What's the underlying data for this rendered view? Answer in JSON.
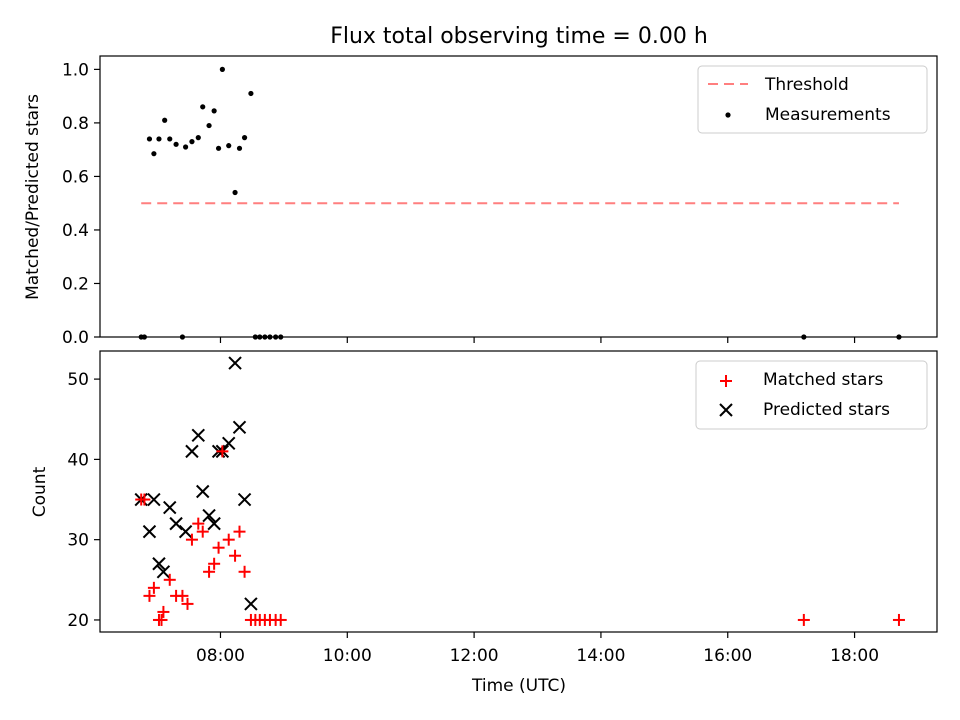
{
  "title": "Flux total observing time = 0.00 h",
  "chart_data": [
    {
      "type": "scatter",
      "xlabel": "",
      "ylabel": "Matched/Predicted stars",
      "xlim": [
        6.1,
        19.3
      ],
      "ylim": [
        0,
        1.05
      ],
      "yticks": [
        0.0,
        0.2,
        0.4,
        0.6,
        0.8,
        1.0
      ],
      "yticklabels": [
        "0.0",
        "0.2",
        "0.4",
        "0.6",
        "0.8",
        "1.0"
      ],
      "legend_position": "top-right",
      "threshold": {
        "name": "Threshold",
        "y": 0.5,
        "x": [
          6.75,
          18.7
        ],
        "color": "#ff7f7f"
      },
      "series": [
        {
          "name": "Measurements",
          "color": "#000000",
          "x": [
            6.75,
            6.8,
            6.88,
            6.95,
            7.03,
            7.12,
            7.2,
            7.3,
            7.45,
            7.55,
            7.65,
            7.72,
            7.82,
            7.9,
            7.97,
            8.03,
            8.13,
            8.23,
            8.3,
            8.38,
            8.48,
            8.55,
            8.62,
            8.7,
            8.78,
            8.87,
            8.95,
            7.4,
            17.2,
            18.7
          ],
          "y": [
            0,
            0,
            0.74,
            0.685,
            0.74,
            0.81,
            0.74,
            0.72,
            0.71,
            0.73,
            0.745,
            0.86,
            0.79,
            0.845,
            0.705,
            1.0,
            0.715,
            0.54,
            0.705,
            0.745,
            0.91,
            0,
            0,
            0,
            0,
            0,
            0,
            0,
            0,
            0
          ]
        }
      ]
    },
    {
      "type": "scatter",
      "xlabel": "Time (UTC)",
      "ylabel": "Count",
      "xlim": [
        6.1,
        19.3
      ],
      "ylim": [
        18.5,
        53.5
      ],
      "xticks": [
        8,
        10,
        12,
        14,
        16,
        18
      ],
      "xticklabels": [
        "08:00",
        "10:00",
        "12:00",
        "14:00",
        "16:00",
        "18:00"
      ],
      "yticks": [
        20,
        30,
        40,
        50
      ],
      "yticklabels": [
        "20",
        "30",
        "40",
        "50"
      ],
      "legend_position": "top-right",
      "series": [
        {
          "name": "Matched stars",
          "marker": "plus",
          "color": "#ff0000",
          "x": [
            6.75,
            6.8,
            6.88,
            6.95,
            7.03,
            7.1,
            7.2,
            7.3,
            7.4,
            7.48,
            7.55,
            7.65,
            7.72,
            7.82,
            7.9,
            7.97,
            8.03,
            8.13,
            8.23,
            8.3,
            8.38,
            8.48,
            8.55,
            8.62,
            8.7,
            8.78,
            8.87,
            8.95,
            7.07,
            17.2,
            18.7
          ],
          "y": [
            35,
            35,
            23,
            24,
            20,
            21,
            25,
            23,
            23,
            22,
            30,
            32,
            31,
            26,
            27,
            29,
            41,
            30,
            28,
            31,
            26,
            20,
            20,
            20,
            20,
            20,
            20,
            20,
            20,
            20,
            20
          ]
        },
        {
          "name": "Predicted stars",
          "marker": "x",
          "color": "#000000",
          "x": [
            6.75,
            6.88,
            6.95,
            7.03,
            7.1,
            7.2,
            7.3,
            7.45,
            7.55,
            7.65,
            7.72,
            7.82,
            7.9,
            7.97,
            8.03,
            8.13,
            8.23,
            8.3,
            8.38,
            8.48
          ],
          "y": [
            35,
            31,
            35,
            27,
            26,
            34,
            32,
            31,
            41,
            43,
            36,
            33,
            32,
            41,
            41,
            42,
            52,
            44,
            35,
            22
          ]
        }
      ]
    }
  ]
}
